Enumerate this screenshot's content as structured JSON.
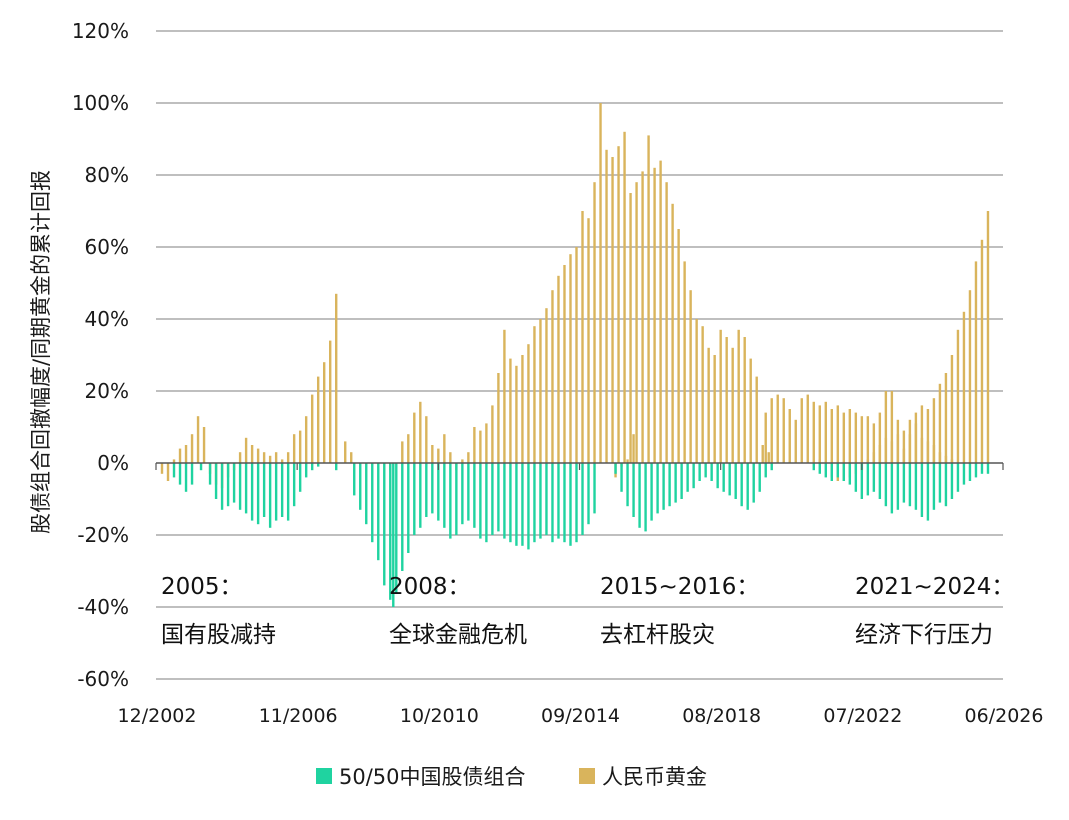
{
  "chart_data": {
    "type": "bar",
    "ylabel": "股债组合回撤幅度/同期黄金的累计回报",
    "ylim": [
      -60,
      120
    ],
    "yticks": [
      -60,
      -40,
      -20,
      0,
      20,
      40,
      60,
      80,
      100,
      120
    ],
    "ytick_labels": [
      "-60%",
      "-40%",
      "-20%",
      "0%",
      "20%",
      "40%",
      "60%",
      "80%",
      "100%",
      "120%"
    ],
    "grid": true,
    "x_range": [
      "2002-12",
      "2026-06"
    ],
    "xtick_labels": [
      "12/2002",
      "11/2006",
      "10/2010",
      "09/2014",
      "08/2018",
      "07/2022",
      "06/2026"
    ],
    "legend_position": "bottom-center",
    "colors": {
      "stock_bond": "#1fd3a0",
      "gold": "#d9b45c",
      "grid": "#aaaaaa",
      "axis": "#555555"
    },
    "annotations": [
      {
        "title": "2005：",
        "text": "国有股减持"
      },
      {
        "title": "2008：",
        "text": "全球金融危机"
      },
      {
        "title": "2015~2016：",
        "text": "去杠杆股灾"
      },
      {
        "title": "2021~2024：",
        "text": "经济下行压力"
      }
    ],
    "series": [
      {
        "name": "50/50中国股债组合",
        "key": "stock_bond",
        "points": [
          [
            "2003-06",
            -4
          ],
          [
            "2003-08",
            -6
          ],
          [
            "2003-10",
            -8
          ],
          [
            "2003-12",
            -6
          ],
          [
            "2004-03",
            -2
          ],
          [
            "2004-06",
            -6
          ],
          [
            "2004-08",
            -10
          ],
          [
            "2004-10",
            -13
          ],
          [
            "2004-12",
            -12
          ],
          [
            "2005-02",
            -11
          ],
          [
            "2005-04",
            -13
          ],
          [
            "2005-06",
            -14
          ],
          [
            "2005-08",
            -16
          ],
          [
            "2005-10",
            -17
          ],
          [
            "2005-12",
            -15
          ],
          [
            "2006-02",
            -18
          ],
          [
            "2006-04",
            -16
          ],
          [
            "2006-06",
            -15
          ],
          [
            "2006-08",
            -16
          ],
          [
            "2006-10",
            -12
          ],
          [
            "2006-12",
            -8
          ],
          [
            "2007-02",
            -4
          ],
          [
            "2007-04",
            -2
          ],
          [
            "2007-06",
            -1
          ],
          [
            "2007-12",
            -2
          ],
          [
            "2008-06",
            -9
          ],
          [
            "2008-08",
            -13
          ],
          [
            "2008-10",
            -17
          ],
          [
            "2008-12",
            -22
          ],
          [
            "2009-02",
            -27
          ],
          [
            "2009-04",
            -34
          ],
          [
            "2009-06",
            -38
          ],
          [
            "2009-07",
            -40
          ],
          [
            "2009-08",
            -36
          ],
          [
            "2009-10",
            -30
          ],
          [
            "2009-12",
            -25
          ],
          [
            "2010-02",
            -20
          ],
          [
            "2010-04",
            -18
          ],
          [
            "2010-06",
            -15
          ],
          [
            "2010-08",
            -14
          ],
          [
            "2010-10",
            -16
          ],
          [
            "2010-12",
            -18
          ],
          [
            "2011-02",
            -21
          ],
          [
            "2011-04",
            -20
          ],
          [
            "2011-06",
            -17
          ],
          [
            "2011-08",
            -16
          ],
          [
            "2011-10",
            -18
          ],
          [
            "2011-12",
            -21
          ],
          [
            "2012-02",
            -22
          ],
          [
            "2012-04",
            -20
          ],
          [
            "2012-06",
            -19
          ],
          [
            "2012-08",
            -21
          ],
          [
            "2012-10",
            -22
          ],
          [
            "2012-12",
            -23
          ],
          [
            "2013-02",
            -23
          ],
          [
            "2013-04",
            -24
          ],
          [
            "2013-06",
            -22
          ],
          [
            "2013-08",
            -21
          ],
          [
            "2013-10",
            -20
          ],
          [
            "2013-12",
            -22
          ],
          [
            "2014-02",
            -21
          ],
          [
            "2014-04",
            -22
          ],
          [
            "2014-06",
            -23
          ],
          [
            "2014-08",
            -22
          ],
          [
            "2014-10",
            -20
          ],
          [
            "2014-12",
            -17
          ],
          [
            "2015-02",
            -14
          ],
          [
            "2015-09",
            -3
          ],
          [
            "2015-11",
            -8
          ],
          [
            "2016-01",
            -12
          ],
          [
            "2016-03",
            -15
          ],
          [
            "2016-05",
            -18
          ],
          [
            "2016-07",
            -19
          ],
          [
            "2016-09",
            -16
          ],
          [
            "2016-11",
            -14
          ],
          [
            "2017-01",
            -13
          ],
          [
            "2017-03",
            -12
          ],
          [
            "2017-05",
            -11
          ],
          [
            "2017-07",
            -10
          ],
          [
            "2017-09",
            -8
          ],
          [
            "2017-11",
            -7
          ],
          [
            "2018-01",
            -5
          ],
          [
            "2018-03",
            -4
          ],
          [
            "2018-05",
            -5
          ],
          [
            "2018-07",
            -7
          ],
          [
            "2018-09",
            -8
          ],
          [
            "2018-11",
            -9
          ],
          [
            "2019-01",
            -10
          ],
          [
            "2019-03",
            -12
          ],
          [
            "2019-05",
            -13
          ],
          [
            "2019-07",
            -11
          ],
          [
            "2019-09",
            -8
          ],
          [
            "2019-11",
            -4
          ],
          [
            "2020-01",
            -2
          ],
          [
            "2021-03",
            -2
          ],
          [
            "2021-05",
            -3
          ],
          [
            "2021-07",
            -4
          ],
          [
            "2021-09",
            -5
          ],
          [
            "2021-11",
            -4
          ],
          [
            "2022-01",
            -5
          ],
          [
            "2022-03",
            -6
          ],
          [
            "2022-05",
            -8
          ],
          [
            "2022-07",
            -10
          ],
          [
            "2022-09",
            -9
          ],
          [
            "2022-11",
            -8
          ],
          [
            "2023-01",
            -10
          ],
          [
            "2023-03",
            -12
          ],
          [
            "2023-05",
            -14
          ],
          [
            "2023-07",
            -13
          ],
          [
            "2023-09",
            -11
          ],
          [
            "2023-11",
            -12
          ],
          [
            "2024-01",
            -13
          ],
          [
            "2024-03",
            -15
          ],
          [
            "2024-05",
            -16
          ],
          [
            "2024-07",
            -13
          ],
          [
            "2024-09",
            -11
          ],
          [
            "2024-11",
            -12
          ],
          [
            "2025-01",
            -10
          ],
          [
            "2025-03",
            -8
          ],
          [
            "2025-05",
            -6
          ],
          [
            "2025-07",
            -5
          ],
          [
            "2025-09",
            -4
          ],
          [
            "2025-11",
            -3
          ],
          [
            "2026-01",
            -3
          ]
        ]
      },
      {
        "name": "人民币黄金",
        "key": "gold",
        "points": [
          [
            "2003-02",
            -3
          ],
          [
            "2003-04",
            -5
          ],
          [
            "2003-06",
            1
          ],
          [
            "2003-08",
            4
          ],
          [
            "2003-10",
            5
          ],
          [
            "2003-12",
            8
          ],
          [
            "2004-02",
            13
          ],
          [
            "2004-04",
            10
          ],
          [
            "2004-06",
            -3
          ],
          [
            "2004-08",
            -6
          ],
          [
            "2004-10",
            -7
          ],
          [
            "2004-12",
            -4
          ],
          [
            "2005-02",
            -2
          ],
          [
            "2005-04",
            3
          ],
          [
            "2005-06",
            7
          ],
          [
            "2005-08",
            5
          ],
          [
            "2005-10",
            4
          ],
          [
            "2005-12",
            3
          ],
          [
            "2006-02",
            2
          ],
          [
            "2006-04",
            3
          ],
          [
            "2006-06",
            1
          ],
          [
            "2006-08",
            3
          ],
          [
            "2006-10",
            8
          ],
          [
            "2006-12",
            9
          ],
          [
            "2007-02",
            13
          ],
          [
            "2007-04",
            19
          ],
          [
            "2007-06",
            24
          ],
          [
            "2007-08",
            28
          ],
          [
            "2007-10",
            34
          ],
          [
            "2007-12",
            47
          ],
          [
            "2008-03",
            6
          ],
          [
            "2008-05",
            3
          ],
          [
            "2009-06",
            -2
          ],
          [
            "2009-10",
            6
          ],
          [
            "2009-12",
            8
          ],
          [
            "2010-02",
            14
          ],
          [
            "2010-04",
            17
          ],
          [
            "2010-06",
            13
          ],
          [
            "2010-08",
            5
          ],
          [
            "2010-10",
            4
          ],
          [
            "2010-12",
            8
          ],
          [
            "2011-02",
            3
          ],
          [
            "2011-04",
            -2
          ],
          [
            "2011-06",
            1
          ],
          [
            "2011-08",
            3
          ],
          [
            "2011-10",
            10
          ],
          [
            "2011-12",
            9
          ],
          [
            "2012-02",
            11
          ],
          [
            "2012-04",
            16
          ],
          [
            "2012-06",
            25
          ],
          [
            "2012-08",
            37
          ],
          [
            "2012-10",
            29
          ],
          [
            "2012-12",
            27
          ],
          [
            "2013-02",
            30
          ],
          [
            "2013-04",
            33
          ],
          [
            "2013-06",
            38
          ],
          [
            "2013-08",
            40
          ],
          [
            "2013-10",
            43
          ],
          [
            "2013-12",
            48
          ],
          [
            "2014-02",
            52
          ],
          [
            "2014-04",
            55
          ],
          [
            "2014-06",
            58
          ],
          [
            "2014-08",
            60
          ],
          [
            "2014-10",
            70
          ],
          [
            "2014-12",
            68
          ],
          [
            "2015-02",
            78
          ],
          [
            "2015-04",
            100
          ],
          [
            "2015-06",
            87
          ],
          [
            "2015-08",
            85
          ],
          [
            "2015-10",
            88
          ],
          [
            "2015-12",
            92
          ],
          [
            "2016-02",
            75
          ],
          [
            "2016-04",
            78
          ],
          [
            "2016-06",
            81
          ],
          [
            "2016-08",
            91
          ],
          [
            "2016-10",
            82
          ],
          [
            "2016-12",
            84
          ],
          [
            "2017-02",
            78
          ],
          [
            "2017-04",
            72
          ],
          [
            "2017-06",
            65
          ],
          [
            "2017-08",
            56
          ],
          [
            "2017-10",
            48
          ],
          [
            "2017-12",
            40
          ],
          [
            "2018-02",
            38
          ],
          [
            "2018-04",
            32
          ],
          [
            "2018-06",
            30
          ],
          [
            "2018-08",
            37
          ],
          [
            "2018-10",
            35
          ],
          [
            "2018-12",
            32
          ],
          [
            "2019-02",
            37
          ],
          [
            "2019-04",
            35
          ],
          [
            "2019-06",
            29
          ],
          [
            "2019-08",
            24
          ],
          [
            "2019-10",
            5
          ],
          [
            "2019-12",
            3
          ],
          [
            "2015-09",
            -4
          ],
          [
            "2015-11",
            -1
          ],
          [
            "2016-01",
            1
          ],
          [
            "2016-03",
            8
          ],
          [
            "2019-11",
            14
          ],
          [
            "2020-01",
            18
          ],
          [
            "2020-03",
            19
          ],
          [
            "2020-05",
            18
          ],
          [
            "2020-07",
            15
          ],
          [
            "2020-09",
            12
          ],
          [
            "2020-11",
            18
          ],
          [
            "2021-01",
            19
          ],
          [
            "2021-03",
            17
          ],
          [
            "2021-05",
            16
          ],
          [
            "2021-07",
            17
          ],
          [
            "2021-09",
            15
          ],
          [
            "2021-11",
            16
          ],
          [
            "2022-01",
            14
          ],
          [
            "2022-03",
            15
          ],
          [
            "2022-05",
            14
          ],
          [
            "2022-07",
            13
          ],
          [
            "2022-09",
            13
          ],
          [
            "2022-11",
            11
          ],
          [
            "2023-01",
            14
          ],
          [
            "2023-03",
            20
          ],
          [
            "2023-05",
            20
          ],
          [
            "2023-07",
            12
          ],
          [
            "2023-09",
            4
          ],
          [
            "2023-11",
            8
          ],
          [
            "2024-01",
            11
          ],
          [
            "2024-03",
            7
          ],
          [
            "2024-05",
            6
          ],
          [
            "2024-07",
            5
          ],
          [
            "2024-09",
            3
          ],
          [
            "2024-11",
            2
          ],
          [
            "2025-01",
            1
          ],
          [
            "2021-05",
            1
          ],
          [
            "2021-09",
            -4
          ],
          [
            "2021-11",
            -5
          ],
          [
            "2022-01",
            -5
          ],
          [
            "2022-03",
            -4
          ],
          [
            "2022-05",
            -3
          ],
          [
            "2022-07",
            -2
          ],
          [
            "2022-09",
            1
          ],
          [
            "2022-11",
            3
          ],
          [
            "2023-01",
            5
          ],
          [
            "2023-03",
            7
          ],
          [
            "2023-05",
            6
          ],
          [
            "2023-07",
            8
          ],
          [
            "2023-09",
            9
          ],
          [
            "2023-11",
            12
          ],
          [
            "2024-01",
            14
          ],
          [
            "2024-03",
            16
          ],
          [
            "2024-05",
            15
          ],
          [
            "2024-07",
            18
          ],
          [
            "2024-09",
            22
          ],
          [
            "2024-11",
            25
          ],
          [
            "2025-01",
            30
          ],
          [
            "2025-03",
            37
          ],
          [
            "2025-05",
            42
          ],
          [
            "2025-07",
            48
          ],
          [
            "2025-09",
            56
          ],
          [
            "2025-11",
            62
          ],
          [
            "2026-01",
            70
          ]
        ]
      }
    ]
  },
  "legend": {
    "items": [
      {
        "label": "50/50中国股债组合",
        "color": "#1fd3a0"
      },
      {
        "label": "人民币黄金",
        "color": "#d9b45c"
      }
    ]
  }
}
